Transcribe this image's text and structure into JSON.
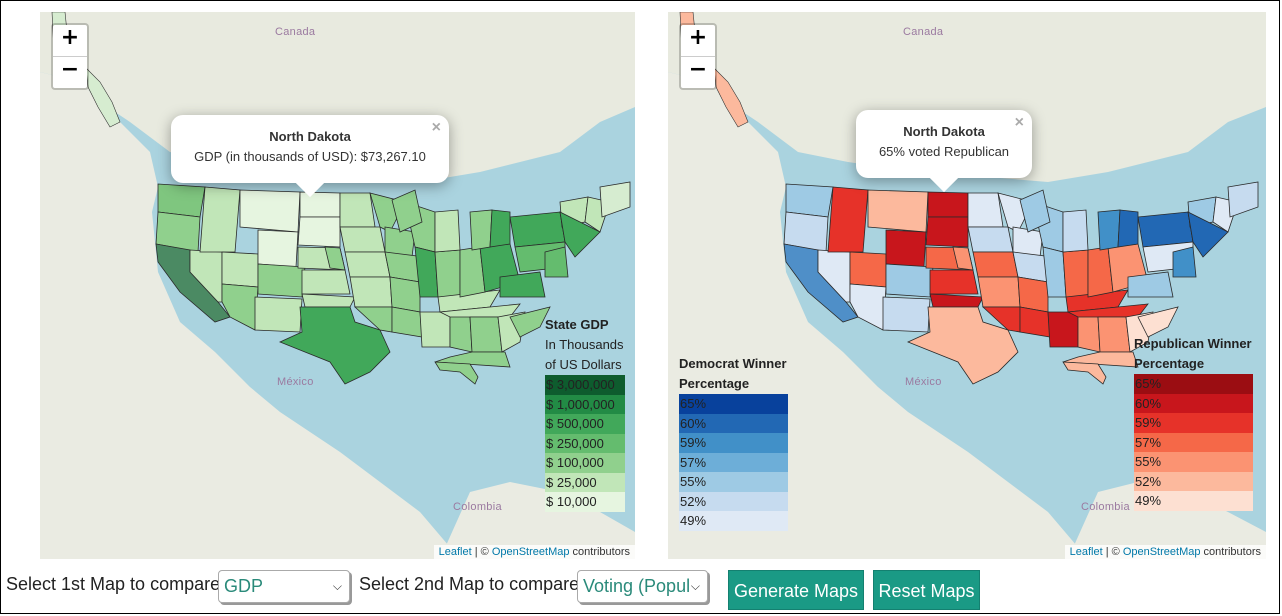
{
  "maps": [
    {
      "popup": {
        "title": "North Dakota",
        "text": "GDP (in thousands of USD): $73,267.10",
        "close": "×"
      },
      "labels": {
        "canada": "Canada",
        "mexico": "México",
        "colombia": "Colombia"
      },
      "legend": {
        "title": "State GDP",
        "subtitle_line1": "In Thousands",
        "subtitle_line2": "of US Dollars",
        "items": [
          {
            "label": "$ 3,000,000",
            "color": "#0e5c2e"
          },
          {
            "label": "$ 1,000,000",
            "color": "#228b45"
          },
          {
            "label": "$ 500,000",
            "color": "#41a85a"
          },
          {
            "label": "$ 250,000",
            "color": "#64bc6e"
          },
          {
            "label": "$ 100,000",
            "color": "#90d08d"
          },
          {
            "label": "$ 25,000",
            "color": "#c1e6b8"
          },
          {
            "label": "$ 10,000",
            "color": "#e6f5e0"
          }
        ]
      },
      "attribution": {
        "leaflet": "Leaflet",
        "sep": " | © ",
        "osm": "OpenStreetMap",
        "contrib": " contributors"
      }
    },
    {
      "popup": {
        "title": "North Dakota",
        "text": "65% voted Republican",
        "close": "×"
      },
      "labels": {
        "canada": "Canada",
        "mexico": "México",
        "colombia": "Colombia"
      },
      "legend_dem": {
        "title_line1": "Democrat Winner",
        "title_line2": "Percentage",
        "items": [
          {
            "label": "65%",
            "color": "#08419c"
          },
          {
            "label": "60%",
            "color": "#2268b4"
          },
          {
            "label": "59%",
            "color": "#4190c8"
          },
          {
            "label": "57%",
            "color": "#6daed8"
          },
          {
            "label": "55%",
            "color": "#9ecae4"
          },
          {
            "label": "52%",
            "color": "#c6dbef"
          },
          {
            "label": "49%",
            "color": "#dfe9f5"
          }
        ]
      },
      "legend_rep": {
        "title_line1": "Republican Winner",
        "title_line2": "Percentage",
        "items": [
          {
            "label": "65%",
            "color": "#9b0d12"
          },
          {
            "label": "60%",
            "color": "#c8161c"
          },
          {
            "label": "59%",
            "color": "#e63229"
          },
          {
            "label": "57%",
            "color": "#f56848"
          },
          {
            "label": "55%",
            "color": "#fb9372"
          },
          {
            "label": "52%",
            "color": "#fcb99d"
          },
          {
            "label": "49%",
            "color": "#fde0d2"
          }
        ]
      },
      "attribution": {
        "leaflet": "Leaflet",
        "sep": " | © ",
        "osm": "OpenStreetMap",
        "contrib": " contributors"
      }
    }
  ],
  "zoom": {
    "in": "+",
    "out": "−"
  },
  "controls": {
    "label1": "Select 1st Map to compare",
    "select1_value": "GDP",
    "label2": "Select 2nd Map to compare",
    "select2_value": "Voting (Popul",
    "generate_label": "Generate Maps",
    "reset_label": "Reset Maps"
  }
}
